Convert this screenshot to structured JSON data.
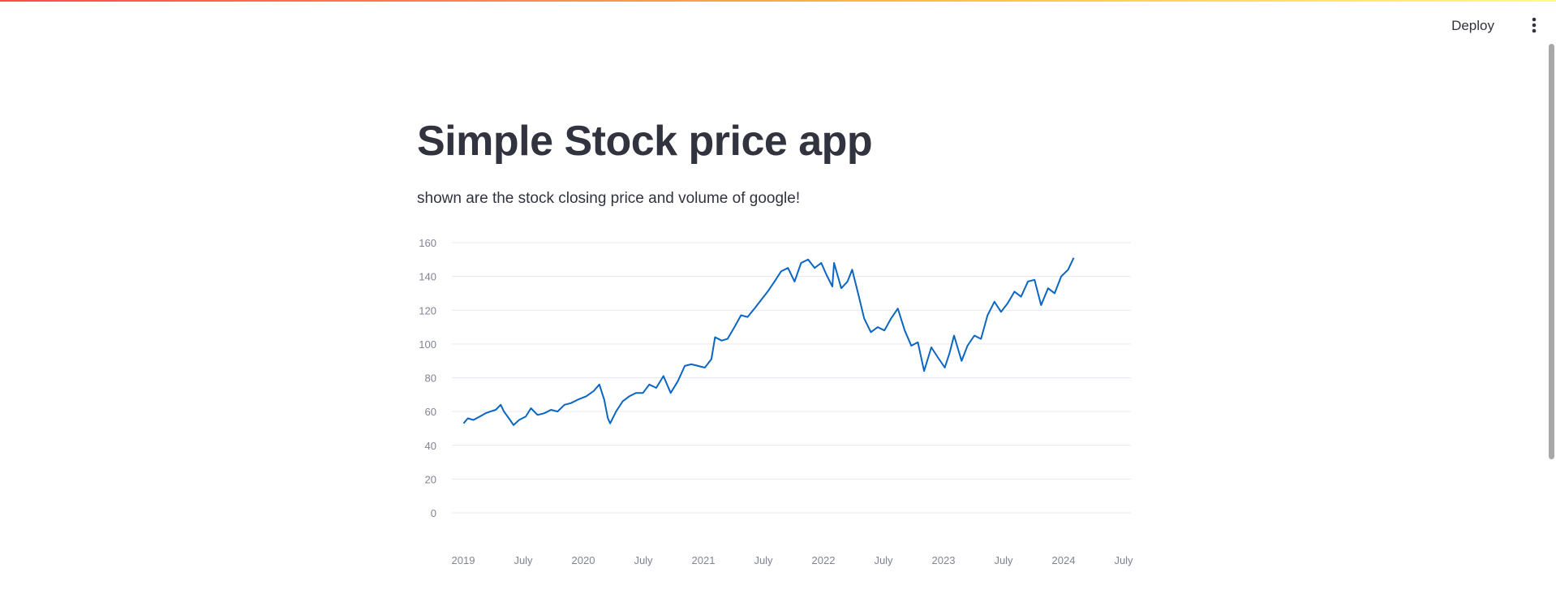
{
  "header": {
    "deploy_label": "Deploy",
    "menu_icon": "vertical-ellipsis-icon"
  },
  "main": {
    "title": "Simple Stock price app",
    "subtitle": "shown are the stock closing price and volume of google!"
  },
  "colors": {
    "line": "#0b66c3",
    "grid": "#e6e9ef",
    "tick_text": "#808495",
    "text": "#31333f"
  },
  "chart_data": {
    "type": "line",
    "title": "",
    "xlabel": "",
    "ylabel": "",
    "ylim": [
      0,
      160
    ],
    "yticks": [
      "0",
      "20",
      "40",
      "60",
      "80",
      "100",
      "120",
      "140",
      "160"
    ],
    "xticks": [
      "2019",
      "July",
      "2020",
      "July",
      "2021",
      "July",
      "2022",
      "July",
      "2023",
      "July",
      "2024",
      "July"
    ],
    "grid": true,
    "series": [
      {
        "values": [
          {
            "x": "2019-01-02",
            "y": 53
          },
          {
            "x": "2019-01-15",
            "y": 56
          },
          {
            "x": "2019-02-01",
            "y": 55
          },
          {
            "x": "2019-02-20",
            "y": 57
          },
          {
            "x": "2019-03-10",
            "y": 59
          },
          {
            "x": "2019-03-25",
            "y": 60
          },
          {
            "x": "2019-04-10",
            "y": 61
          },
          {
            "x": "2019-04-25",
            "y": 64
          },
          {
            "x": "2019-05-05",
            "y": 60
          },
          {
            "x": "2019-05-20",
            "y": 56
          },
          {
            "x": "2019-06-03",
            "y": 52
          },
          {
            "x": "2019-06-20",
            "y": 55
          },
          {
            "x": "2019-07-10",
            "y": 57
          },
          {
            "x": "2019-07-26",
            "y": 62
          },
          {
            "x": "2019-08-15",
            "y": 58
          },
          {
            "x": "2019-09-05",
            "y": 59
          },
          {
            "x": "2019-09-25",
            "y": 61
          },
          {
            "x": "2019-10-15",
            "y": 60
          },
          {
            "x": "2019-11-05",
            "y": 64
          },
          {
            "x": "2019-11-25",
            "y": 65
          },
          {
            "x": "2019-12-15",
            "y": 67
          },
          {
            "x": "2020-01-10",
            "y": 69
          },
          {
            "x": "2020-02-01",
            "y": 72
          },
          {
            "x": "2020-02-19",
            "y": 76
          },
          {
            "x": "2020-03-05",
            "y": 67
          },
          {
            "x": "2020-03-16",
            "y": 56
          },
          {
            "x": "2020-03-23",
            "y": 53
          },
          {
            "x": "2020-04-10",
            "y": 60
          },
          {
            "x": "2020-04-30",
            "y": 66
          },
          {
            "x": "2020-05-20",
            "y": 69
          },
          {
            "x": "2020-06-10",
            "y": 71
          },
          {
            "x": "2020-07-01",
            "y": 71
          },
          {
            "x": "2020-07-20",
            "y": 76
          },
          {
            "x": "2020-08-10",
            "y": 74
          },
          {
            "x": "2020-09-01",
            "y": 81
          },
          {
            "x": "2020-09-23",
            "y": 71
          },
          {
            "x": "2020-10-15",
            "y": 78
          },
          {
            "x": "2020-11-05",
            "y": 87
          },
          {
            "x": "2020-11-25",
            "y": 88
          },
          {
            "x": "2020-12-15",
            "y": 87
          },
          {
            "x": "2021-01-05",
            "y": 86
          },
          {
            "x": "2021-01-25",
            "y": 91
          },
          {
            "x": "2021-02-05",
            "y": 104
          },
          {
            "x": "2021-02-25",
            "y": 102
          },
          {
            "x": "2021-03-15",
            "y": 103
          },
          {
            "x": "2021-04-05",
            "y": 110
          },
          {
            "x": "2021-04-25",
            "y": 117
          },
          {
            "x": "2021-05-15",
            "y": 116
          },
          {
            "x": "2021-06-05",
            "y": 121
          },
          {
            "x": "2021-06-25",
            "y": 126
          },
          {
            "x": "2021-07-15",
            "y": 131
          },
          {
            "x": "2021-08-05",
            "y": 137
          },
          {
            "x": "2021-08-25",
            "y": 143
          },
          {
            "x": "2021-09-15",
            "y": 145
          },
          {
            "x": "2021-10-05",
            "y": 137
          },
          {
            "x": "2021-10-25",
            "y": 148
          },
          {
            "x": "2021-11-15",
            "y": 150
          },
          {
            "x": "2021-12-05",
            "y": 145
          },
          {
            "x": "2021-12-25",
            "y": 148
          },
          {
            "x": "2022-01-10",
            "y": 141
          },
          {
            "x": "2022-01-28",
            "y": 134
          },
          {
            "x": "2022-02-02",
            "y": 148
          },
          {
            "x": "2022-02-24",
            "y": 133
          },
          {
            "x": "2022-03-15",
            "y": 137
          },
          {
            "x": "2022-03-29",
            "y": 144
          },
          {
            "x": "2022-04-15",
            "y": 131
          },
          {
            "x": "2022-05-05",
            "y": 115
          },
          {
            "x": "2022-05-25",
            "y": 107
          },
          {
            "x": "2022-06-15",
            "y": 110
          },
          {
            "x": "2022-07-05",
            "y": 108
          },
          {
            "x": "2022-07-25",
            "y": 115
          },
          {
            "x": "2022-08-15",
            "y": 121
          },
          {
            "x": "2022-09-05",
            "y": 108
          },
          {
            "x": "2022-09-25",
            "y": 99
          },
          {
            "x": "2022-10-15",
            "y": 101
          },
          {
            "x": "2022-11-03",
            "y": 84
          },
          {
            "x": "2022-11-25",
            "y": 98
          },
          {
            "x": "2022-12-15",
            "y": 92
          },
          {
            "x": "2023-01-05",
            "y": 86
          },
          {
            "x": "2023-01-20",
            "y": 95
          },
          {
            "x": "2023-02-02",
            "y": 105
          },
          {
            "x": "2023-02-25",
            "y": 90
          },
          {
            "x": "2023-03-15",
            "y": 99
          },
          {
            "x": "2023-04-05",
            "y": 105
          },
          {
            "x": "2023-04-25",
            "y": 103
          },
          {
            "x": "2023-05-15",
            "y": 117
          },
          {
            "x": "2023-06-05",
            "y": 125
          },
          {
            "x": "2023-06-25",
            "y": 119
          },
          {
            "x": "2023-07-15",
            "y": 124
          },
          {
            "x": "2023-08-05",
            "y": 131
          },
          {
            "x": "2023-08-25",
            "y": 128
          },
          {
            "x": "2023-09-15",
            "y": 137
          },
          {
            "x": "2023-10-05",
            "y": 138
          },
          {
            "x": "2023-10-25",
            "y": 123
          },
          {
            "x": "2023-11-15",
            "y": 133
          },
          {
            "x": "2023-12-05",
            "y": 130
          },
          {
            "x": "2023-12-25",
            "y": 140
          },
          {
            "x": "2024-01-15",
            "y": 144
          },
          {
            "x": "2024-02-01",
            "y": 151
          }
        ]
      }
    ]
  }
}
